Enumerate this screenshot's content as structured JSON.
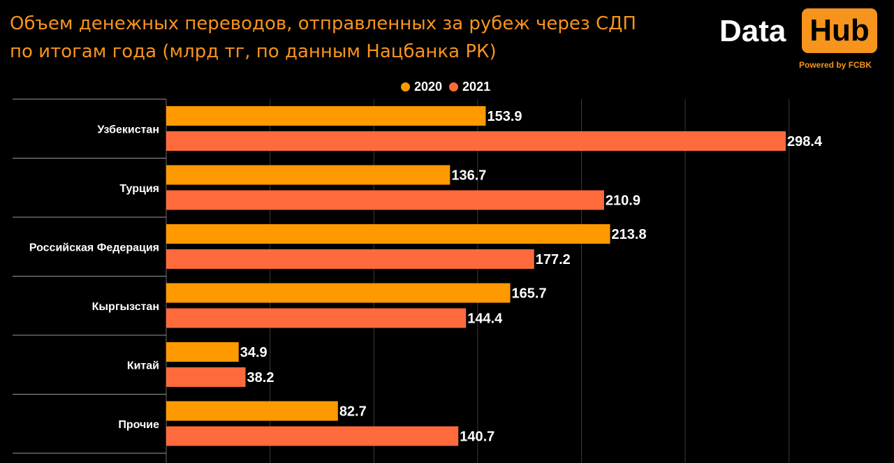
{
  "header": {
    "title_line1": "Объем денежных переводов, отправленных за рубеж через СДП",
    "title_line2": "по итогам года (млрд тг, по данным Нацбанка РК)"
  },
  "logo": {
    "data_text": "Data",
    "hub_text": "Hub",
    "powered": "Powered by FCBK"
  },
  "colors": {
    "background": "#000000",
    "accent": "#F7941D",
    "series_2020": "#FF9900",
    "series_2021": "#FF6A3D",
    "text": "#FFFFFF",
    "grid": "#3A3A3A"
  },
  "chart_data": {
    "type": "bar",
    "orientation": "horizontal",
    "title": "Объем денежных переводов, отправленных за рубеж через СДП по итогам года (млрд тг, по данным Нацбанка РК)",
    "categories": [
      "Узбекистан",
      "Турция",
      "Российская Федерация",
      "Кыргызстан",
      "Китай",
      "Прочие"
    ],
    "series": [
      {
        "name": "2020",
        "color": "#FF9900",
        "values": [
          153.9,
          136.7,
          213.8,
          165.7,
          34.9,
          82.7
        ]
      },
      {
        "name": "2021",
        "color": "#FF6A3D",
        "values": [
          298.4,
          210.9,
          177.2,
          144.4,
          38.2,
          140.7
        ]
      }
    ],
    "xlim": [
      0,
      300
    ],
    "grid": true,
    "legend": "top-center",
    "data_labels": true
  }
}
